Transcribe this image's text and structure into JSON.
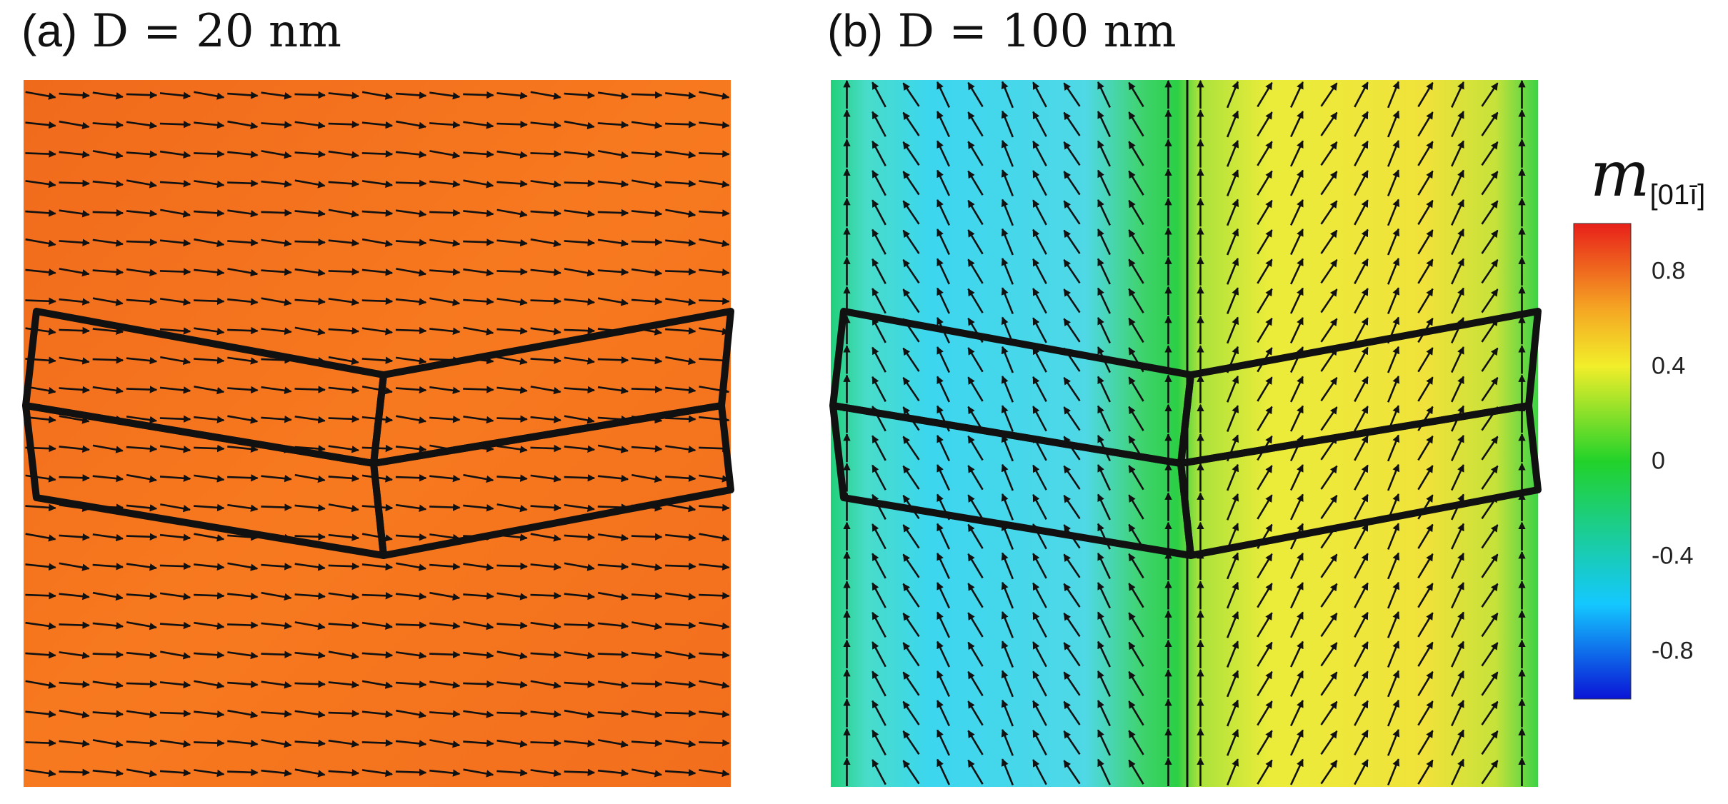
{
  "chart_data": [
    {
      "type": "heatmap",
      "panel": "(a)",
      "title_prefix": "(a)",
      "title_main": "D = 20 nm",
      "field": "uniform",
      "m_value": 0.95,
      "arrow_direction": "pointing right",
      "grain_outlines": "two chevron-shaped grains (upper and lower) outlined in black"
    },
    {
      "type": "heatmap",
      "panel": "(b)",
      "title_prefix": "(b)",
      "title_main": "D = 100 nm",
      "field": "two domains split at the center line",
      "domains": [
        {
          "side": "left",
          "m_value": -0.5,
          "arrow_direction": "pointing up-left"
        },
        {
          "side": "right",
          "m_value": 0.65,
          "arrow_direction": "pointing up-right"
        }
      ],
      "domain_wall_m_value": 0.1,
      "grain_outlines": "two chevron-shaped grains (upper and lower) outlined in black"
    }
  ],
  "colorbar": {
    "label_symbol": "m",
    "label_subscript": "[01ī]",
    "tick_labels": [
      "0.8",
      "0.4",
      "0",
      "-0.4",
      "-0.8"
    ],
    "tick_values": [
      0.8,
      0.4,
      0,
      -0.4,
      -0.8
    ],
    "range": [
      -1,
      1
    ],
    "colormap": [
      "#0a14d6",
      "#14c8ff",
      "#22d22a",
      "#f2ee2a",
      "#f5a623",
      "#e8201a"
    ]
  },
  "colors": {
    "panel_a_fill": "#f6731e",
    "outline": "#111111"
  }
}
